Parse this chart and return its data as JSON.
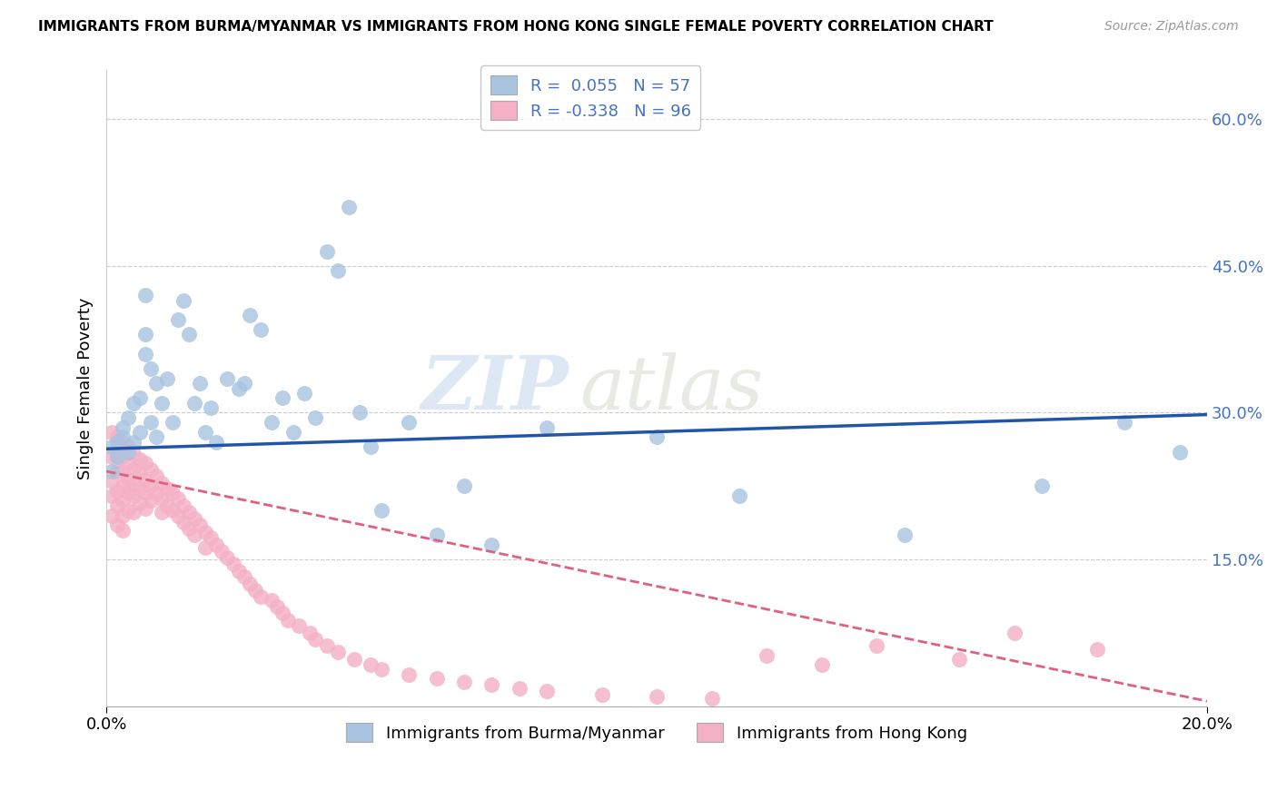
{
  "title": "IMMIGRANTS FROM BURMA/MYANMAR VS IMMIGRANTS FROM HONG KONG SINGLE FEMALE POVERTY CORRELATION CHART",
  "source": "Source: ZipAtlas.com",
  "xlabel_bottom_left": "0.0%",
  "xlabel_bottom_right": "20.0%",
  "ylabel": "Single Female Poverty",
  "yticks": [
    "60.0%",
    "45.0%",
    "30.0%",
    "15.0%"
  ],
  "ytick_values": [
    0.6,
    0.45,
    0.3,
    0.15
  ],
  "xlim": [
    0.0,
    0.2
  ],
  "ylim": [
    0.0,
    0.65
  ],
  "series1_label": "Immigrants from Burma/Myanmar",
  "series1_R": "0.055",
  "series1_N": "57",
  "series1_color": "#a8c4e0",
  "series1_line_color": "#2255aa",
  "series2_label": "Immigrants from Hong Kong",
  "series2_R": "-0.338",
  "series2_N": "96",
  "series2_color": "#f4b0c4",
  "series2_line_color": "#e06080",
  "watermark_zip": "ZIP",
  "watermark_atlas": "atlas",
  "background_color": "#ffffff",
  "grid_color": "#cccccc",
  "series1_x": [
    0.001,
    0.001,
    0.002,
    0.002,
    0.003,
    0.003,
    0.004,
    0.004,
    0.005,
    0.005,
    0.006,
    0.006,
    0.007,
    0.007,
    0.007,
    0.008,
    0.008,
    0.009,
    0.009,
    0.01,
    0.011,
    0.012,
    0.013,
    0.014,
    0.015,
    0.016,
    0.017,
    0.018,
    0.019,
    0.02,
    0.022,
    0.024,
    0.025,
    0.026,
    0.028,
    0.03,
    0.032,
    0.034,
    0.036,
    0.038,
    0.04,
    0.042,
    0.044,
    0.046,
    0.048,
    0.05,
    0.055,
    0.06,
    0.065,
    0.07,
    0.08,
    0.1,
    0.115,
    0.145,
    0.17,
    0.185,
    0.195
  ],
  "series1_y": [
    0.265,
    0.24,
    0.27,
    0.255,
    0.275,
    0.285,
    0.26,
    0.295,
    0.27,
    0.31,
    0.28,
    0.315,
    0.36,
    0.38,
    0.42,
    0.345,
    0.29,
    0.33,
    0.275,
    0.31,
    0.335,
    0.29,
    0.395,
    0.415,
    0.38,
    0.31,
    0.33,
    0.28,
    0.305,
    0.27,
    0.335,
    0.325,
    0.33,
    0.4,
    0.385,
    0.29,
    0.315,
    0.28,
    0.32,
    0.295,
    0.465,
    0.445,
    0.51,
    0.3,
    0.265,
    0.2,
    0.29,
    0.175,
    0.225,
    0.165,
    0.285,
    0.275,
    0.215,
    0.175,
    0.225,
    0.29,
    0.26
  ],
  "series2_x": [
    0.001,
    0.001,
    0.001,
    0.001,
    0.001,
    0.002,
    0.002,
    0.002,
    0.002,
    0.002,
    0.002,
    0.003,
    0.003,
    0.003,
    0.003,
    0.003,
    0.003,
    0.003,
    0.004,
    0.004,
    0.004,
    0.004,
    0.004,
    0.005,
    0.005,
    0.005,
    0.005,
    0.005,
    0.006,
    0.006,
    0.006,
    0.006,
    0.007,
    0.007,
    0.007,
    0.007,
    0.008,
    0.008,
    0.008,
    0.009,
    0.009,
    0.01,
    0.01,
    0.01,
    0.011,
    0.011,
    0.012,
    0.012,
    0.013,
    0.013,
    0.014,
    0.014,
    0.015,
    0.015,
    0.016,
    0.016,
    0.017,
    0.018,
    0.018,
    0.019,
    0.02,
    0.021,
    0.022,
    0.023,
    0.024,
    0.025,
    0.026,
    0.027,
    0.028,
    0.03,
    0.031,
    0.032,
    0.033,
    0.035,
    0.037,
    0.038,
    0.04,
    0.042,
    0.045,
    0.048,
    0.05,
    0.055,
    0.06,
    0.065,
    0.07,
    0.075,
    0.08,
    0.09,
    0.1,
    0.11,
    0.12,
    0.13,
    0.14,
    0.155,
    0.165,
    0.18
  ],
  "series2_y": [
    0.28,
    0.255,
    0.23,
    0.215,
    0.195,
    0.275,
    0.255,
    0.24,
    0.22,
    0.205,
    0.185,
    0.27,
    0.255,
    0.24,
    0.225,
    0.21,
    0.195,
    0.18,
    0.265,
    0.248,
    0.232,
    0.218,
    0.2,
    0.258,
    0.242,
    0.228,
    0.215,
    0.198,
    0.252,
    0.238,
    0.222,
    0.208,
    0.248,
    0.232,
    0.218,
    0.202,
    0.242,
    0.225,
    0.21,
    0.235,
    0.218,
    0.228,
    0.212,
    0.198,
    0.222,
    0.205,
    0.218,
    0.2,
    0.212,
    0.195,
    0.205,
    0.188,
    0.198,
    0.182,
    0.192,
    0.175,
    0.185,
    0.178,
    0.162,
    0.172,
    0.165,
    0.158,
    0.152,
    0.145,
    0.138,
    0.132,
    0.125,
    0.118,
    0.112,
    0.108,
    0.102,
    0.095,
    0.088,
    0.082,
    0.075,
    0.068,
    0.062,
    0.055,
    0.048,
    0.042,
    0.038,
    0.032,
    0.028,
    0.025,
    0.022,
    0.018,
    0.015,
    0.012,
    0.01,
    0.008,
    0.052,
    0.042,
    0.062,
    0.048,
    0.075,
    0.058
  ],
  "trend1_x": [
    0.0,
    0.2
  ],
  "trend1_y": [
    0.263,
    0.298
  ],
  "trend2_x": [
    0.0,
    0.2
  ],
  "trend2_y": [
    0.24,
    0.005
  ]
}
